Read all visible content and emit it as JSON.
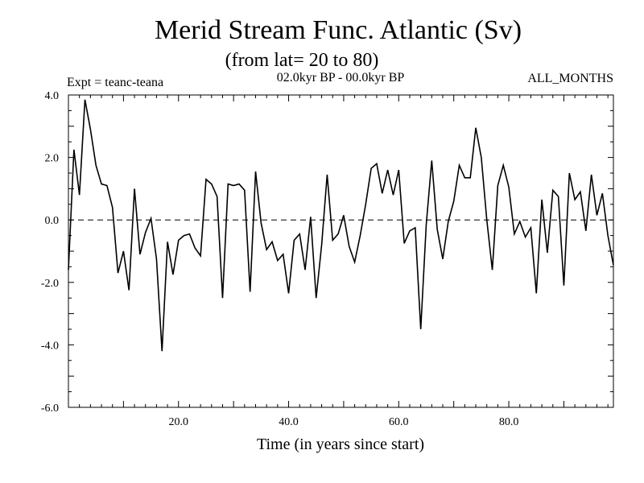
{
  "chart_data": {
    "type": "line",
    "title": "Merid Stream Func. Atlantic (Sv)",
    "subtitle": "(from lat= 20 to 80)",
    "experiment": "Expt = teanc-teana",
    "period": "02.0kyr BP - 00.0kyr BP",
    "season": "ALL_MONTHS",
    "xlabel": "Time (in years since start)",
    "ylabel": "",
    "xlim": [
      0,
      99
    ],
    "ylim": [
      -6,
      4
    ],
    "x_ticks": [
      20,
      40,
      60,
      80
    ],
    "x_tick_labels": [
      "20.0",
      "40.0",
      "60.0",
      "80.0"
    ],
    "y_ticks": [
      -6,
      -4,
      -2,
      0,
      2,
      4
    ],
    "y_tick_labels": [
      "-6.0",
      "-4.0",
      "-2.0",
      "0.0",
      "2.0",
      "4.0"
    ],
    "reference_line": 0,
    "series": [
      {
        "name": "teanc-teana",
        "x": [
          0,
          1,
          2,
          3,
          4,
          5,
          6,
          7,
          8,
          9,
          10,
          11,
          12,
          13,
          14,
          15,
          16,
          17,
          18,
          19,
          20,
          21,
          22,
          23,
          24,
          25,
          26,
          27,
          28,
          29,
          30,
          31,
          32,
          33,
          34,
          35,
          36,
          37,
          38,
          39,
          40,
          41,
          42,
          43,
          44,
          45,
          46,
          47,
          48,
          49,
          50,
          51,
          52,
          53,
          54,
          55,
          56,
          57,
          58,
          59,
          60,
          61,
          62,
          63,
          64,
          65,
          66,
          67,
          68,
          69,
          70,
          71,
          72,
          73,
          74,
          75,
          76,
          77,
          78,
          79,
          80,
          81,
          82,
          83,
          84,
          85,
          86,
          87,
          88,
          89,
          90,
          91,
          92,
          93,
          94,
          95,
          96,
          97,
          98,
          99
        ],
        "values": [
          -1.6,
          2.25,
          0.8,
          3.85,
          2.9,
          1.75,
          1.15,
          1.1,
          0.4,
          -1.7,
          -1.0,
          -2.25,
          1.0,
          -1.1,
          -0.4,
          0.05,
          -1.25,
          -4.2,
          -0.7,
          -1.75,
          -0.65,
          -0.5,
          -0.45,
          -0.9,
          -1.15,
          1.3,
          1.15,
          0.75,
          -2.5,
          1.15,
          1.1,
          1.15,
          0.95,
          -2.3,
          1.55,
          -0.1,
          -0.95,
          -0.7,
          -1.3,
          -1.1,
          -2.35,
          -0.65,
          -0.45,
          -1.6,
          0.1,
          -2.5,
          -0.8,
          1.45,
          -0.65,
          -0.45,
          0.15,
          -0.85,
          -1.35,
          -0.5,
          0.5,
          1.65,
          1.8,
          0.85,
          1.6,
          0.8,
          1.6,
          -0.75,
          -0.35,
          -0.25,
          -3.5,
          -0.15,
          1.9,
          -0.3,
          -1.25,
          -0.05,
          0.6,
          1.75,
          1.35,
          1.35,
          2.95,
          2.0,
          0.0,
          -1.6,
          1.1,
          1.75,
          1.05,
          -0.45,
          -0.05,
          -0.55,
          -0.25,
          -2.35,
          0.65,
          -1.05,
          0.95,
          0.75,
          -2.1,
          1.5,
          0.65,
          0.9,
          -0.35,
          1.45,
          0.15,
          0.85,
          -0.5,
          -1.45
        ]
      }
    ]
  }
}
